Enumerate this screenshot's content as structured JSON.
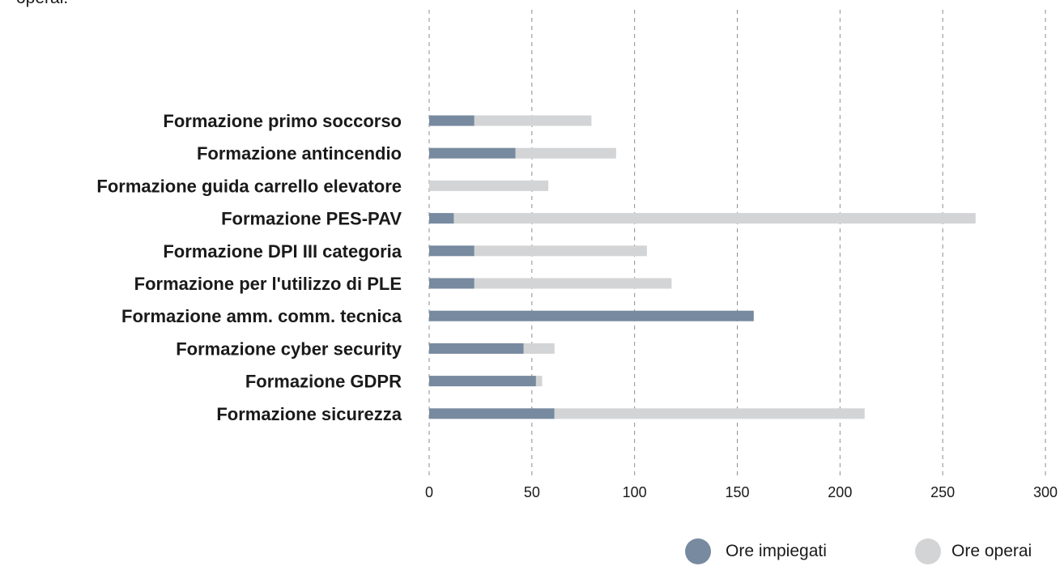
{
  "top_text": "operai.",
  "chart_data": {
    "type": "bar",
    "orientation": "horizontal",
    "stacked": true,
    "title": "",
    "xlabel": "",
    "ylabel": "",
    "xlim": [
      0,
      300
    ],
    "xticks": [
      "0",
      "50",
      "100",
      "150",
      "200",
      "250",
      "300"
    ],
    "grid": true,
    "grid_style": "dashed vertical",
    "legend_position": "bottom-right",
    "categories": [
      "Formazione primo soccorso",
      "Formazione antincendio",
      "Formazione guida carrello elevatore",
      "Formazione PES-PAV",
      "Formazione DPI III categoria",
      "Formazione per l'utilizzo di PLE",
      "Formazione amm. comm. tecnica",
      "Formazione cyber security",
      "Formazione GDPR",
      "Formazione sicurezza"
    ],
    "series": [
      {
        "name": "Ore impiegati",
        "color": "#778a9f",
        "values": [
          22,
          42,
          0,
          12,
          22,
          22,
          158,
          46,
          52,
          61
        ]
      },
      {
        "name": "Ore operai",
        "color": "#d3d4d5",
        "values": [
          57,
          49,
          58,
          254,
          84,
          96,
          0,
          15,
          3,
          151
        ]
      }
    ]
  }
}
